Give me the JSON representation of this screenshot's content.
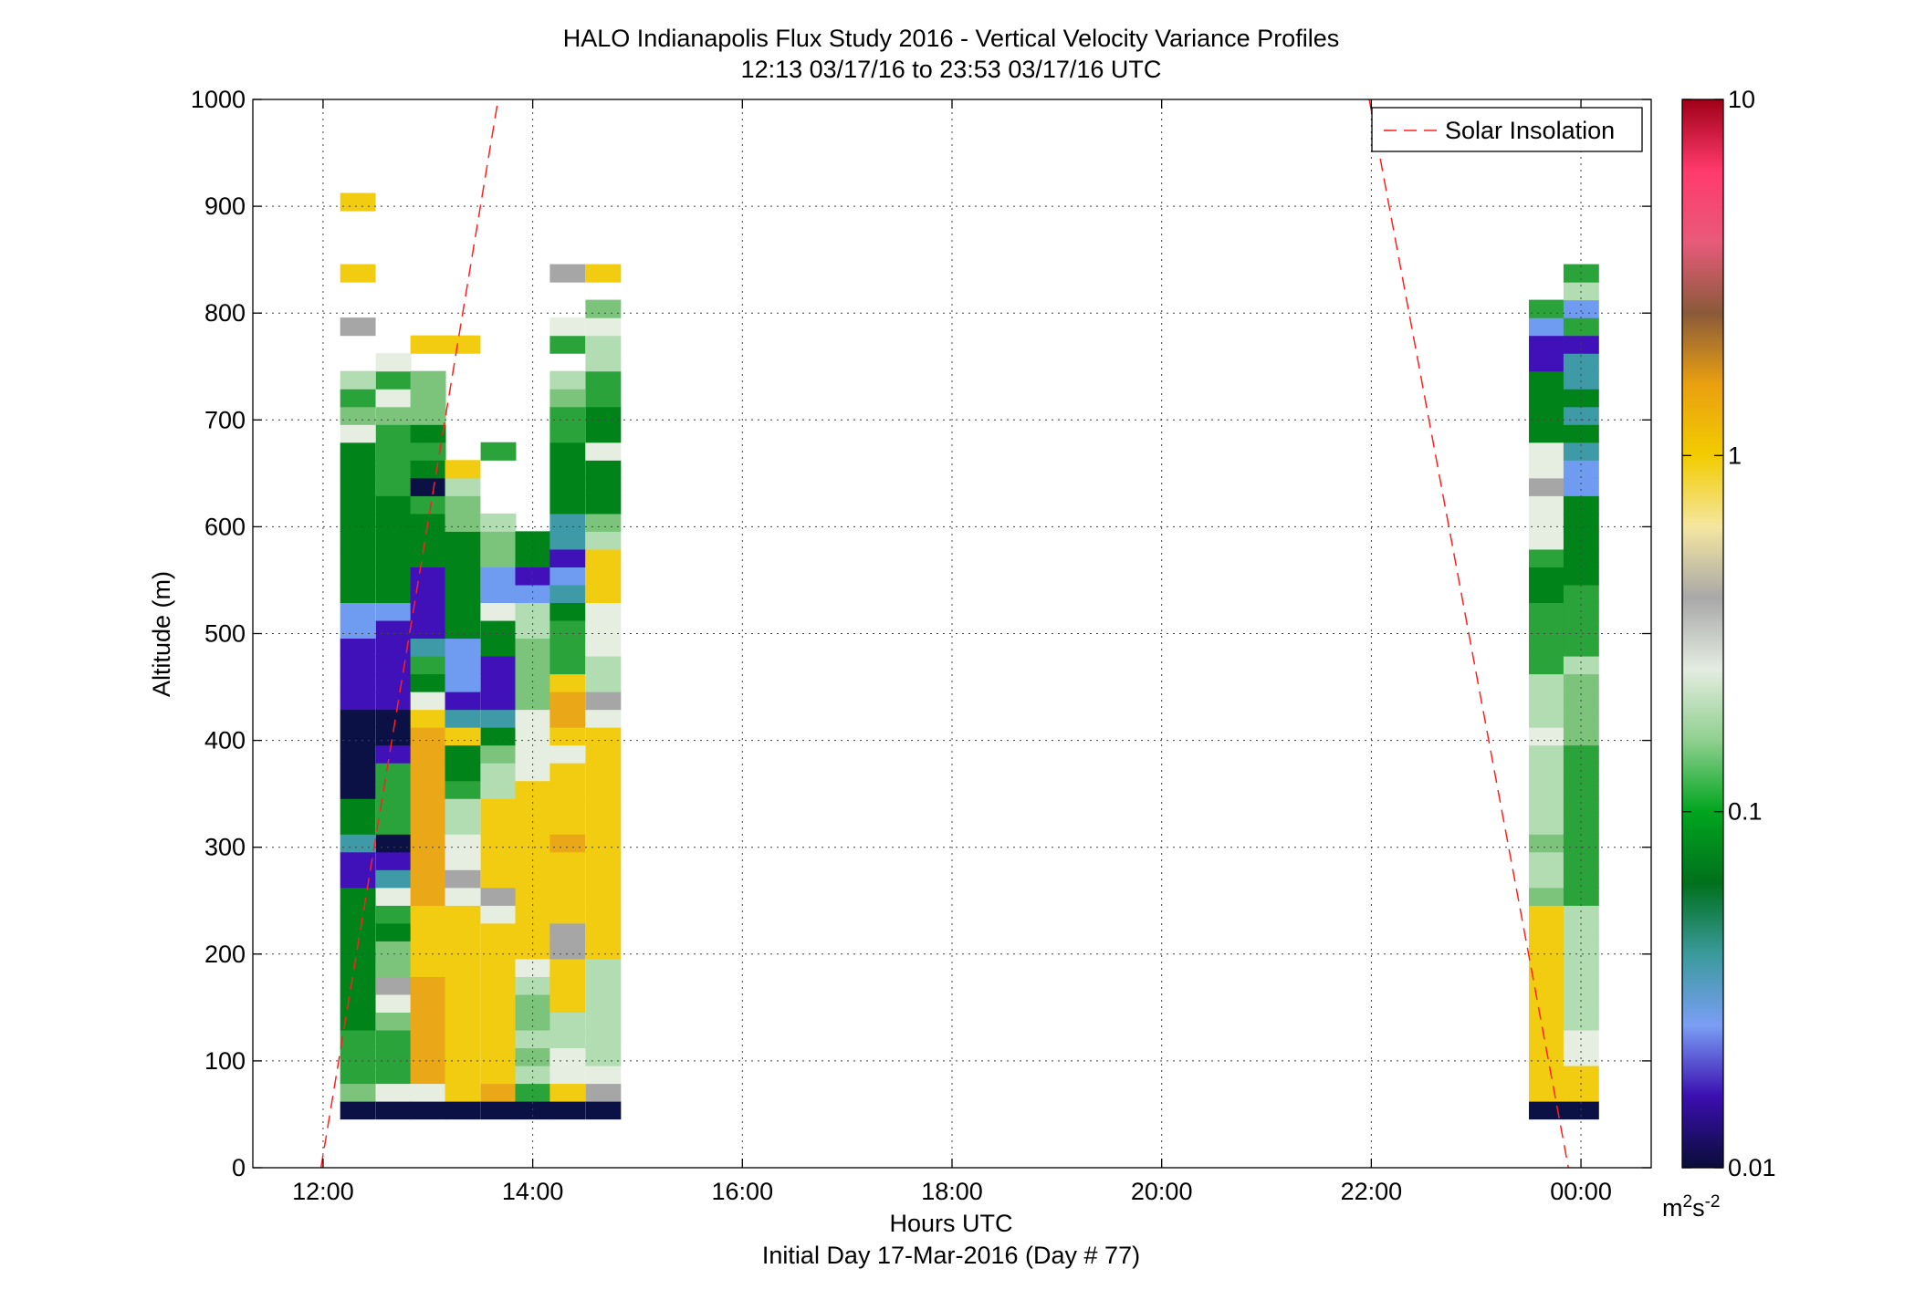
{
  "chart_data": {
    "type": "heatmap",
    "title": "HALO Indianapolis Flux Study 2016 - Vertical Velocity Variance Profiles",
    "subtitle": "12:13 03/17/16 to 23:53 03/17/16  UTC",
    "xlabel": "Hours UTC",
    "xlabel2": "Initial Day 17-Mar-2016 (Day # 77)",
    "ylabel": "Altitude (m)",
    "xlim": [
      11.33,
      24.67
    ],
    "ylim": [
      0,
      1000
    ],
    "x_ticks": [
      12,
      14,
      16,
      18,
      20,
      22,
      24
    ],
    "x_tick_labels": [
      "12:00",
      "14:00",
      "16:00",
      "18:00",
      "20:00",
      "22:00",
      "00:00"
    ],
    "y_ticks": [
      0,
      100,
      200,
      300,
      400,
      500,
      600,
      700,
      800,
      900,
      1000
    ],
    "y_tick_labels": [
      "0",
      "100",
      "200",
      "300",
      "400",
      "500",
      "600",
      "700",
      "800",
      "900",
      "1000"
    ],
    "grid": true,
    "legend": {
      "entries": [
        "Solar Insolation"
      ],
      "placement": "top-right"
    },
    "colorbar": {
      "scale": "log",
      "range": [
        0.01,
        10
      ],
      "tick_values": [
        0.01,
        0.1,
        1,
        10
      ],
      "tick_labels": [
        "0.01",
        "0.1",
        "1",
        "10"
      ],
      "unit_base": "m",
      "unit_sup1": "2",
      "unit_mid": "s",
      "unit_sup2": "-2"
    },
    "bin_width_hours": 0.3333,
    "bin_height_m": 16.67,
    "first_bin_center_m": 54,
    "profiles": [
      {
        "time": 12.33,
        "bins": [
          "nv",
          "lg",
          "mg",
          "mg",
          "mg",
          "dg",
          "dg",
          "dg",
          "dg",
          "dg",
          "dg",
          "dg",
          "dg",
          "vi",
          "vi",
          "tl",
          "dg",
          "dg",
          "nv",
          "nv",
          "nv",
          "nv",
          "nv",
          "vi",
          "vi",
          "vi",
          "vi",
          "bl",
          "bl",
          "dg",
          "dg",
          "dg",
          "dg",
          "dg",
          "dg",
          "dg",
          "dg",
          "dg",
          "vl",
          "lg",
          "mg",
          "pg",
          "null",
          "null",
          "gy",
          "null",
          "null",
          "ye",
          "null",
          "null",
          "null",
          "ye",
          "null",
          "null",
          "null",
          "null",
          "null",
          "null"
        ]
      },
      {
        "time": 12.67,
        "bins": [
          "nv",
          "vl",
          "mg",
          "mg",
          "mg",
          "lg",
          "vl",
          "gy",
          "lg",
          "lg",
          "dg",
          "mg",
          "vl",
          "tl",
          "vi",
          "nv",
          "mg",
          "mg",
          "mg",
          "mg",
          "vi",
          "nv",
          "nv",
          "vi",
          "vi",
          "vi",
          "vi",
          "vi",
          "bl",
          "dg",
          "dg",
          "dg",
          "dg",
          "dg",
          "dg",
          "mg",
          "mg",
          "mg",
          "mg",
          "lg",
          "vl",
          "mg",
          "vl",
          "null",
          "null",
          "null",
          "null",
          "null",
          "null",
          "null",
          "null",
          "null",
          "null",
          "null",
          "null",
          "null",
          "null",
          "null"
        ]
      },
      {
        "time": 13.0,
        "bins": [
          "nv",
          "vl",
          "or",
          "or",
          "or",
          "or",
          "or",
          "or",
          "ye",
          "ye",
          "ye",
          "ye",
          "or",
          "or",
          "or",
          "or",
          "or",
          "or",
          "or",
          "or",
          "or",
          "or",
          "ye",
          "vl",
          "dg",
          "mg",
          "tl",
          "vi",
          "vi",
          "vi",
          "vi",
          "dg",
          "dg",
          "dg",
          "mg",
          "nv",
          "dg",
          "mg",
          "dg",
          "lg",
          "lg",
          "lg",
          "null",
          "ye",
          "null",
          "null",
          "null",
          "null",
          "null",
          "null",
          "null",
          "null",
          "null",
          "null",
          "null",
          "null",
          "null",
          "null"
        ]
      },
      {
        "time": 13.33,
        "bins": [
          "nv",
          "ye",
          "ye",
          "ye",
          "ye",
          "ye",
          "ye",
          "ye",
          "ye",
          "ye",
          "ye",
          "ye",
          "vl",
          "gy",
          "vl",
          "vl",
          "pg",
          "pg",
          "mg",
          "dg",
          "dg",
          "ye",
          "tl",
          "vi",
          "bl",
          "bl",
          "bl",
          "dg",
          "dg",
          "dg",
          "dg",
          "dg",
          "dg",
          "lg",
          "lg",
          "pg",
          "ye",
          "null",
          "null",
          "null",
          "null",
          "null",
          "null",
          "ye",
          "null",
          "null",
          "null",
          "null",
          "null",
          "null",
          "null",
          "null",
          "null",
          "null",
          "null",
          "null",
          "null",
          "null"
        ]
      },
      {
        "time": 13.67,
        "bins": [
          "nv",
          "or",
          "ye",
          "ye",
          "ye",
          "ye",
          "ye",
          "ye",
          "ye",
          "ye",
          "ye",
          "vl",
          "gy",
          "ye",
          "ye",
          "ye",
          "ye",
          "ye",
          "pg",
          "pg",
          "lg",
          "dg",
          "tl",
          "vi",
          "vi",
          "vi",
          "dg",
          "dg",
          "vl",
          "bl",
          "bl",
          "lg",
          "lg",
          "pg",
          "null",
          "null",
          "null",
          "mg",
          "null",
          "null",
          "null",
          "null",
          "null",
          "null",
          "null",
          "null",
          "null",
          "null",
          "null",
          "null",
          "null",
          "null",
          "null",
          "null",
          "null",
          "null",
          "null",
          "null"
        ]
      },
      {
        "time": 14.0,
        "bins": [
          "nv",
          "mg",
          "pg",
          "lg",
          "pg",
          "lg",
          "lg",
          "pg",
          "vl",
          "ye",
          "ye",
          "ye",
          "ye",
          "ye",
          "ye",
          "ye",
          "ye",
          "ye",
          "ye",
          "vl",
          "vl",
          "vl",
          "vl",
          "lg",
          "lg",
          "lg",
          "lg",
          "pg",
          "pg",
          "bl",
          "vi",
          "dg",
          "dg",
          "null",
          "null",
          "null",
          "null",
          "null",
          "null",
          "null",
          "null",
          "null",
          "null",
          "null",
          "null",
          "null",
          "null",
          "null",
          "null",
          "null",
          "null",
          "null",
          "null",
          "null",
          "null",
          "null",
          "null",
          "null"
        ]
      },
      {
        "time": 14.33,
        "bins": [
          "nv",
          "ye",
          "vl",
          "vl",
          "pg",
          "pg",
          "ye",
          "ye",
          "ye",
          "gy",
          "gy",
          "ye",
          "ye",
          "ye",
          "ye",
          "or",
          "ye",
          "ye",
          "ye",
          "ye",
          "vl",
          "ye",
          "or",
          "or",
          "ye",
          "mg",
          "mg",
          "mg",
          "dg",
          "tl",
          "bl",
          "vi",
          "tl",
          "tl",
          "dg",
          "dg",
          "dg",
          "dg",
          "mg",
          "mg",
          "lg",
          "pg",
          "null",
          "mg",
          "vl",
          "null",
          "null",
          "gy",
          "null",
          "null",
          "null",
          "null",
          "null",
          "null",
          "null",
          "null",
          "null",
          "null"
        ]
      },
      {
        "time": 14.67,
        "bins": [
          "nv",
          "gy",
          "vl",
          "pg",
          "pg",
          "pg",
          "pg",
          "pg",
          "pg",
          "ye",
          "ye",
          "ye",
          "ye",
          "ye",
          "ye",
          "ye",
          "ye",
          "ye",
          "ye",
          "ye",
          "ye",
          "ye",
          "vl",
          "gy",
          "pg",
          "pg",
          "vl",
          "vl",
          "vl",
          "ye",
          "ye",
          "ye",
          "pg",
          "lg",
          "dg",
          "dg",
          "dg",
          "vl",
          "dg",
          "dg",
          "mg",
          "mg",
          "pg",
          "pg",
          "vl",
          "lg",
          "null",
          "ye",
          "null",
          "null",
          "null",
          "null",
          "null",
          "null",
          "null",
          "null",
          "null",
          "null"
        ]
      },
      {
        "time": 23.67,
        "bins": [
          "nv",
          "ye",
          "ye",
          "ye",
          "ye",
          "ye",
          "ye",
          "ye",
          "ye",
          "ye",
          "ye",
          "ye",
          "lg",
          "pg",
          "pg",
          "lg",
          "pg",
          "pg",
          "pg",
          "pg",
          "pg",
          "vl",
          "pg",
          "pg",
          "pg",
          "mg",
          "mg",
          "mg",
          "mg",
          "dg",
          "dg",
          "mg",
          "vl",
          "vl",
          "vl",
          "gy",
          "vl",
          "vl",
          "dg",
          "dg",
          "dg",
          "dg",
          "vi",
          "vi",
          "bl",
          "mg",
          "null",
          "null",
          "null",
          "null",
          "null",
          "null",
          "null",
          "null",
          "null",
          "null",
          "null",
          "null"
        ]
      },
      {
        "time": 24.0,
        "bins": [
          "nv",
          "ye",
          "ye",
          "vl",
          "vl",
          "pg",
          "pg",
          "pg",
          "pg",
          "pg",
          "pg",
          "pg",
          "mg",
          "mg",
          "mg",
          "mg",
          "mg",
          "mg",
          "mg",
          "mg",
          "mg",
          "lg",
          "lg",
          "lg",
          "lg",
          "pg",
          "mg",
          "mg",
          "mg",
          "mg",
          "dg",
          "dg",
          "dg",
          "dg",
          "dg",
          "bl",
          "bl",
          "tl",
          "dg",
          "tl",
          "dg",
          "tl",
          "tl",
          "vi",
          "mg",
          "bl",
          "pg",
          "mg",
          "null",
          "null",
          "null",
          "null",
          "null",
          "null",
          "null",
          "null",
          "null",
          "null"
        ]
      }
    ],
    "solar_insolation": {
      "morning": [
        [
          11.98,
          0
        ],
        [
          13.67,
          1000
        ]
      ],
      "evening": [
        [
          21.98,
          1000
        ],
        [
          23.88,
          0
        ]
      ]
    }
  },
  "palette": {
    "nv": "#0c1145",
    "vi": "#4010b8",
    "bl": "#6f9bf0",
    "tl": "#3f9aa8",
    "dg": "#00841a",
    "mg": "#2aa33a",
    "lg": "#7cc47c",
    "pg": "#b2dcb2",
    "vl": "#e6eee2",
    "gy": "#a6a6a6",
    "ye": "#f2cc10",
    "or": "#eaa818"
  },
  "colorbar_stops": [
    "#090d38",
    "#3b0eb0",
    "#7a9ef5",
    "#3a9a9c",
    "#00701c",
    "#00a51f",
    "#8fd08f",
    "#e4ece1",
    "#a8a8a8",
    "#f5e6a0",
    "#f2cc00",
    "#eaa010",
    "#8a5a3a",
    "#e85a7a",
    "#ff3a6c",
    "#a00018"
  ]
}
